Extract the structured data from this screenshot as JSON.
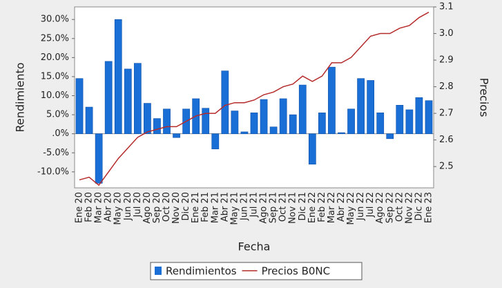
{
  "chart_data": {
    "type": "bar-line",
    "x_label": "Fecha",
    "y_label": "Rendimiento",
    "y2_label": "Precios",
    "categories": [
      "Ene 20",
      "Feb 20",
      "Mar 20",
      "Abr 20",
      "May 20",
      "Jun 20",
      "Jul 20",
      "Ago 20",
      "Sep 20",
      "Oct 20",
      "Nov 20",
      "Dic 20",
      "Ene 21",
      "Feb 21",
      "Mar 21",
      "Abr 21",
      "May 21",
      "Jun 21",
      "Jul 21",
      "Ago 21",
      "Sep 21",
      "Oct 21",
      "Nov 21",
      "Dic 21",
      "Ene 22",
      "Feb 22",
      "Mar 22",
      "Abr 22",
      "May 22",
      "Jun 22",
      "Jul 22",
      "Ago 22",
      "Sep 22",
      "Oct 22",
      "Nov 22",
      "Dic 22",
      "Ene 23"
    ],
    "series": [
      {
        "name": "Rendimientos",
        "type": "bar",
        "color": "#1a6fd6",
        "values": [
          14.5,
          7,
          -13,
          19,
          30,
          17,
          18.5,
          8,
          4,
          6.5,
          -1,
          6.5,
          9.2,
          6.7,
          -4,
          16.5,
          6,
          0.5,
          5.5,
          9,
          1.8,
          9.2,
          5,
          12.8,
          -8,
          5.5,
          17.5,
          0.3,
          6.5,
          14.5,
          14,
          5.5,
          -1.3,
          7.5,
          6.3,
          9.5,
          8.7
        ]
      },
      {
        "name": "Precios B0NC",
        "type": "line",
        "axis": "y2",
        "color": "#b52a2a",
        "values": [
          2.45,
          2.46,
          2.43,
          2.48,
          2.53,
          2.57,
          2.61,
          2.63,
          2.64,
          2.65,
          2.65,
          2.67,
          2.69,
          2.7,
          2.7,
          2.73,
          2.74,
          2.74,
          2.75,
          2.77,
          2.78,
          2.8,
          2.81,
          2.84,
          2.82,
          2.84,
          2.89,
          2.89,
          2.91,
          2.95,
          2.99,
          3.0,
          3.0,
          3.02,
          3.03,
          3.06,
          3.08
        ]
      }
    ],
    "ylim": [
      -14.2,
      33.3
    ],
    "yticks": [
      {
        "value": 30,
        "label": "30.0%"
      },
      {
        "value": 25,
        "label": "25.0%"
      },
      {
        "value": 20,
        "label": "20.0%"
      },
      {
        "value": 15,
        "label": "15.0%"
      },
      {
        "value": 10,
        "label": "10.0%"
      },
      {
        "value": 5,
        "label": "5.0%"
      },
      {
        "value": 0,
        "label": ".0%"
      },
      {
        "value": -5,
        "label": "-5.0%"
      },
      {
        "value": -10,
        "label": "-10.0%"
      }
    ],
    "y2lim": [
      2.42,
      3.1
    ],
    "y2ticks": [
      3.1,
      {
        "value": 3,
        "label": "3.0"
      },
      2.9,
      2.8,
      2.7,
      2.6,
      2.5
    ],
    "legend": "bottom"
  }
}
